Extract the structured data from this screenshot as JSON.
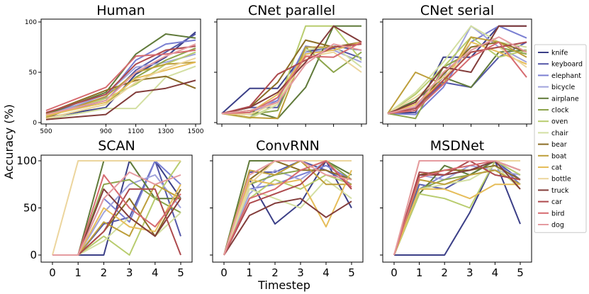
{
  "figure": {
    "ylabel": "Accuracy (%)",
    "xlabel": "Timestep"
  },
  "legend": [
    {
      "label": "knife",
      "color": "#3b3f87"
    },
    {
      "label": "keyboard",
      "color": "#5558a8"
    },
    {
      "label": "elephant",
      "color": "#7a7fd2"
    },
    {
      "label": "bicycle",
      "color": "#a0a3dc"
    },
    {
      "label": "airplane",
      "color": "#607a3a"
    },
    {
      "label": "clock",
      "color": "#8ca44b"
    },
    {
      "label": "oven",
      "color": "#b8cc6e"
    },
    {
      "label": "chair",
      "color": "#d3dfa2"
    },
    {
      "label": "bear",
      "color": "#8b6d26"
    },
    {
      "label": "boat",
      "color": "#bd9e3a"
    },
    {
      "label": "cat",
      "color": "#e6bd5a"
    },
    {
      "label": "bottle",
      "color": "#ecd59d"
    },
    {
      "label": "truck",
      "color": "#823c3a"
    },
    {
      "label": "car",
      "color": "#ad4a4e"
    },
    {
      "label": "bird",
      "color": "#d66b70"
    },
    {
      "label": "dog",
      "color": "#e59ba0"
    }
  ],
  "chart_data": [
    {
      "type": "line",
      "title": "Human",
      "x": [
        500,
        900,
        1100,
        1300,
        1500
      ],
      "xticks": [
        "500",
        "900",
        "1100",
        "1300",
        "1500"
      ],
      "ylim": [
        0,
        100
      ],
      "yticks": [
        "0",
        "50",
        "100"
      ],
      "series": [
        {
          "name": "knife",
          "values": [
            5,
            15,
            48,
            65,
            90
          ]
        },
        {
          "name": "keyboard",
          "values": [
            7,
            22,
            52,
            70,
            88
          ]
        },
        {
          "name": "elephant",
          "values": [
            9,
            25,
            62,
            78,
            82
          ]
        },
        {
          "name": "bicycle",
          "values": [
            6,
            28,
            55,
            60,
            68
          ]
        },
        {
          "name": "airplane",
          "values": [
            8,
            30,
            68,
            88,
            84
          ]
        },
        {
          "name": "clock",
          "values": [
            4,
            18,
            45,
            62,
            74
          ]
        },
        {
          "name": "oven",
          "values": [
            6,
            24,
            38,
            58,
            70
          ]
        },
        {
          "name": "chair",
          "values": [
            3,
            14,
            14,
            45,
            56
          ]
        },
        {
          "name": "bear",
          "values": [
            9,
            32,
            42,
            46,
            34
          ]
        },
        {
          "name": "boat",
          "values": [
            5,
            26,
            50,
            58,
            60
          ]
        },
        {
          "name": "cat",
          "values": [
            7,
            20,
            44,
            52,
            60
          ]
        },
        {
          "name": "bottle",
          "values": [
            4,
            18,
            40,
            54,
            64
          ]
        },
        {
          "name": "truck",
          "values": [
            3,
            8,
            30,
            34,
            42
          ]
        },
        {
          "name": "car",
          "values": [
            10,
            28,
            58,
            72,
            76
          ]
        },
        {
          "name": "bird",
          "values": [
            12,
            35,
            66,
            68,
            72
          ]
        },
        {
          "name": "dog",
          "values": [
            8,
            22,
            50,
            66,
            78
          ]
        }
      ]
    },
    {
      "type": "line",
      "title": "CNet parallel",
      "x": [
        0,
        1,
        2,
        3,
        4,
        5
      ],
      "ylim": [
        0,
        100
      ],
      "series": [
        {
          "name": "knife",
          "values": [
            9,
            34,
            34,
            70,
            76,
            72
          ]
        },
        {
          "name": "keyboard",
          "values": [
            9,
            15,
            15,
            72,
            74,
            64
          ]
        },
        {
          "name": "elephant",
          "values": [
            9,
            10,
            22,
            76,
            72,
            80
          ]
        },
        {
          "name": "bicycle",
          "values": [
            9,
            5,
            25,
            70,
            72,
            60
          ]
        },
        {
          "name": "airplane",
          "values": [
            9,
            12,
            4,
            35,
            96,
            96
          ]
        },
        {
          "name": "clock",
          "values": [
            9,
            8,
            12,
            75,
            50,
            70
          ]
        },
        {
          "name": "oven",
          "values": [
            9,
            5,
            18,
            96,
            96,
            62
          ]
        },
        {
          "name": "chair",
          "values": [
            9,
            4,
            18,
            72,
            76,
            55
          ]
        },
        {
          "name": "bear",
          "values": [
            9,
            15,
            40,
            82,
            75,
            80
          ]
        },
        {
          "name": "boat",
          "values": [
            9,
            5,
            4,
            75,
            75,
            78
          ]
        },
        {
          "name": "cat",
          "values": [
            9,
            10,
            28,
            68,
            72,
            80
          ]
        },
        {
          "name": "bottle",
          "values": [
            9,
            8,
            20,
            65,
            70,
            50
          ]
        },
        {
          "name": "truck",
          "values": [
            9,
            15,
            30,
            60,
            96,
            80
          ]
        },
        {
          "name": "car",
          "values": [
            9,
            16,
            48,
            62,
            75,
            78
          ]
        },
        {
          "name": "bird",
          "values": [
            9,
            10,
            25,
            66,
            65,
            80
          ]
        },
        {
          "name": "dog",
          "values": [
            9,
            12,
            20,
            58,
            78,
            72
          ]
        }
      ]
    },
    {
      "type": "line",
      "title": "CNet serial",
      "x": [
        0,
        1,
        2,
        3,
        4,
        5
      ],
      "ylim": [
        0,
        100
      ],
      "series": [
        {
          "name": "knife",
          "values": [
            9,
            10,
            65,
            65,
            96,
            96
          ]
        },
        {
          "name": "keyboard",
          "values": [
            9,
            12,
            40,
            35,
            65,
            80
          ]
        },
        {
          "name": "elephant",
          "values": [
            9,
            8,
            35,
            80,
            96,
            84
          ]
        },
        {
          "name": "bicycle",
          "values": [
            9,
            15,
            45,
            96,
            75,
            60
          ]
        },
        {
          "name": "airplane",
          "values": [
            9,
            22,
            45,
            35,
            70,
            72
          ]
        },
        {
          "name": "clock",
          "values": [
            9,
            4,
            55,
            70,
            75,
            68
          ]
        },
        {
          "name": "oven",
          "values": [
            9,
            28,
            55,
            85,
            65,
            72
          ]
        },
        {
          "name": "chair",
          "values": [
            9,
            30,
            60,
            96,
            80,
            75
          ]
        },
        {
          "name": "bear",
          "values": [
            9,
            12,
            48,
            75,
            80,
            70
          ]
        },
        {
          "name": "boat",
          "values": [
            9,
            50,
            38,
            85,
            80,
            65
          ]
        },
        {
          "name": "cat",
          "values": [
            9,
            18,
            42,
            80,
            70,
            58
          ]
        },
        {
          "name": "bottle",
          "values": [
            9,
            25,
            45,
            70,
            75,
            55
          ]
        },
        {
          "name": "truck",
          "values": [
            9,
            20,
            55,
            50,
            96,
            96
          ]
        },
        {
          "name": "car",
          "values": [
            9,
            14,
            42,
            70,
            75,
            80
          ]
        },
        {
          "name": "bird",
          "values": [
            9,
            12,
            38,
            65,
            80,
            45
          ]
        },
        {
          "name": "dog",
          "values": [
            9,
            16,
            50,
            72,
            85,
            70
          ]
        }
      ]
    },
    {
      "type": "line",
      "title": "SCAN",
      "x": [
        0,
        1,
        2,
        3,
        4,
        5
      ],
      "xticks": [
        "0",
        "1",
        "2",
        "3",
        "4",
        "5"
      ],
      "ylim": [
        0,
        100
      ],
      "yticks": [
        "0",
        "50",
        "100"
      ],
      "series": [
        {
          "name": "knife",
          "values": [
            0,
            0,
            0,
            100,
            100,
            60
          ]
        },
        {
          "name": "keyboard",
          "values": [
            0,
            0,
            33,
            40,
            100,
            20
          ]
        },
        {
          "name": "elephant",
          "values": [
            0,
            0,
            60,
            35,
            100,
            75
          ]
        },
        {
          "name": "bicycle",
          "values": [
            0,
            0,
            45,
            75,
            85,
            50
          ]
        },
        {
          "name": "airplane",
          "values": [
            0,
            0,
            100,
            100,
            60,
            60
          ]
        },
        {
          "name": "clock",
          "values": [
            0,
            0,
            75,
            80,
            60,
            45
          ]
        },
        {
          "name": "oven",
          "values": [
            0,
            0,
            20,
            0,
            60,
            100
          ]
        },
        {
          "name": "chair",
          "values": [
            0,
            0,
            15,
            40,
            20,
            45
          ]
        },
        {
          "name": "bear",
          "values": [
            0,
            0,
            25,
            60,
            20,
            70
          ]
        },
        {
          "name": "boat",
          "values": [
            0,
            0,
            35,
            20,
            75,
            60
          ]
        },
        {
          "name": "cat",
          "values": [
            0,
            0,
            50,
            30,
            25,
            75
          ]
        },
        {
          "name": "bottle",
          "values": [
            0,
            100,
            100,
            100,
            100,
            100
          ]
        },
        {
          "name": "truck",
          "values": [
            0,
            0,
            70,
            40,
            20,
            60
          ]
        },
        {
          "name": "car",
          "values": [
            0,
            0,
            25,
            70,
            70,
            0
          ]
        },
        {
          "name": "bird",
          "values": [
            0,
            0,
            85,
            50,
            30,
            65
          ]
        },
        {
          "name": "dog",
          "values": [
            0,
            0,
            60,
            88,
            75,
            85
          ]
        }
      ]
    },
    {
      "type": "line",
      "title": "ConvRNN",
      "x": [
        0,
        1,
        2,
        3,
        4,
        5
      ],
      "xticks": [
        "0",
        "1",
        "2",
        "3",
        "4",
        "5"
      ],
      "ylim": [
        0,
        100
      ],
      "series": [
        {
          "name": "knife",
          "values": [
            0,
            80,
            33,
            55,
            100,
            50
          ]
        },
        {
          "name": "keyboard",
          "values": [
            0,
            88,
            88,
            100,
            90,
            75
          ]
        },
        {
          "name": "elephant",
          "values": [
            0,
            70,
            75,
            85,
            95,
            80
          ]
        },
        {
          "name": "bicycle",
          "values": [
            0,
            65,
            90,
            80,
            100,
            70
          ]
        },
        {
          "name": "airplane",
          "values": [
            0,
            100,
            100,
            100,
            100,
            85
          ]
        },
        {
          "name": "clock",
          "values": [
            0,
            75,
            85,
            90,
            100,
            80
          ]
        },
        {
          "name": "oven",
          "values": [
            0,
            60,
            80,
            70,
            85,
            75
          ]
        },
        {
          "name": "chair",
          "values": [
            0,
            70,
            60,
            50,
            80,
            60
          ]
        },
        {
          "name": "bear",
          "values": [
            0,
            80,
            100,
            90,
            90,
            80
          ]
        },
        {
          "name": "boat",
          "values": [
            0,
            90,
            85,
            100,
            75,
            75
          ]
        },
        {
          "name": "cat",
          "values": [
            0,
            80,
            75,
            80,
            30,
            90
          ]
        },
        {
          "name": "bottle",
          "values": [
            0,
            75,
            100,
            100,
            100,
            100
          ]
        },
        {
          "name": "truck",
          "values": [
            0,
            42,
            55,
            60,
            40,
            57
          ]
        },
        {
          "name": "car",
          "values": [
            0,
            55,
            65,
            75,
            100,
            70
          ]
        },
        {
          "name": "bird",
          "values": [
            0,
            60,
            70,
            90,
            100,
            72
          ]
        },
        {
          "name": "dog",
          "values": [
            0,
            85,
            100,
            100,
            85,
            80
          ]
        }
      ]
    },
    {
      "type": "line",
      "title": "MSDNet",
      "x": [
        0,
        1,
        2,
        3,
        4,
        5
      ],
      "xticks": [
        "0",
        "1",
        "2",
        "3",
        "4",
        "5"
      ],
      "ylim": [
        0,
        100
      ],
      "series": [
        {
          "name": "knife",
          "values": [
            0,
            0,
            0,
            45,
            100,
            33
          ]
        },
        {
          "name": "keyboard",
          "values": [
            0,
            75,
            70,
            85,
            100,
            80
          ]
        },
        {
          "name": "elephant",
          "values": [
            0,
            70,
            85,
            90,
            100,
            75
          ]
        },
        {
          "name": "bicycle",
          "values": [
            0,
            85,
            80,
            95,
            90,
            85
          ]
        },
        {
          "name": "airplane",
          "values": [
            0,
            65,
            95,
            85,
            100,
            90
          ]
        },
        {
          "name": "clock",
          "values": [
            0,
            70,
            80,
            85,
            90,
            75
          ]
        },
        {
          "name": "oven",
          "values": [
            0,
            65,
            60,
            50,
            100,
            85
          ]
        },
        {
          "name": "chair",
          "values": [
            0,
            70,
            75,
            80,
            95,
            70
          ]
        },
        {
          "name": "bear",
          "values": [
            0,
            85,
            90,
            90,
            95,
            80
          ]
        },
        {
          "name": "boat",
          "values": [
            0,
            80,
            75,
            85,
            90,
            75
          ]
        },
        {
          "name": "cat",
          "values": [
            0,
            70,
            70,
            60,
            75,
            75
          ]
        },
        {
          "name": "bottle",
          "values": [
            0,
            100,
            100,
            100,
            100,
            100
          ]
        },
        {
          "name": "truck",
          "values": [
            0,
            85,
            85,
            90,
            100,
            70
          ]
        },
        {
          "name": "car",
          "values": [
            0,
            88,
            85,
            100,
            85,
            80
          ]
        },
        {
          "name": "bird",
          "values": [
            0,
            82,
            90,
            95,
            100,
            90
          ]
        },
        {
          "name": "dog",
          "values": [
            0,
            100,
            100,
            100,
            100,
            90
          ]
        }
      ]
    }
  ]
}
